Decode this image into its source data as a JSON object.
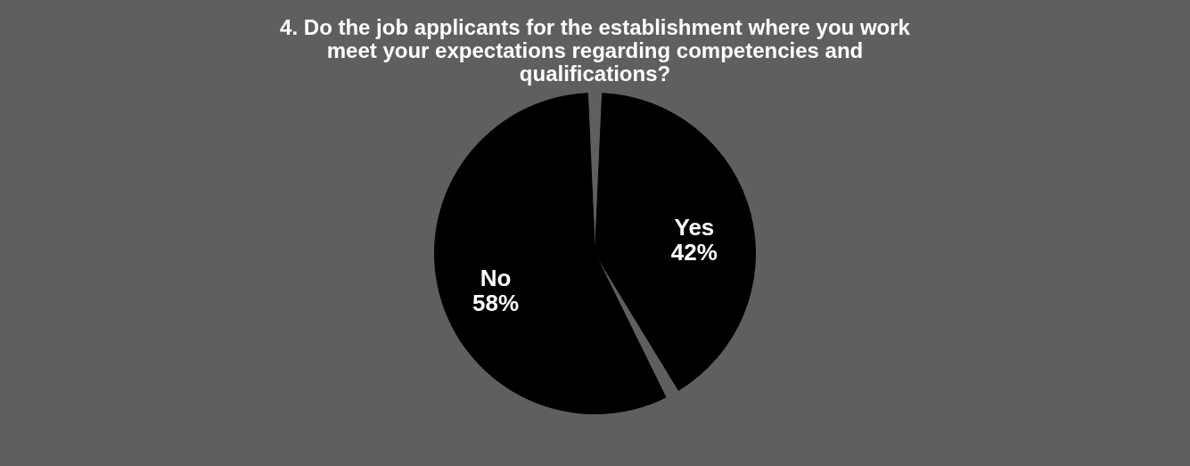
{
  "chart_data": {
    "type": "pie",
    "title": "4. Do the job applicants for the establishment where you work meet your expectations regarding competencies and qualifications?",
    "categories": [
      "Yes",
      "No"
    ],
    "values": [
      42,
      58
    ],
    "value_labels": [
      "42%",
      "58%"
    ],
    "colors": [
      "#000000",
      "#000000"
    ],
    "legend": false
  }
}
